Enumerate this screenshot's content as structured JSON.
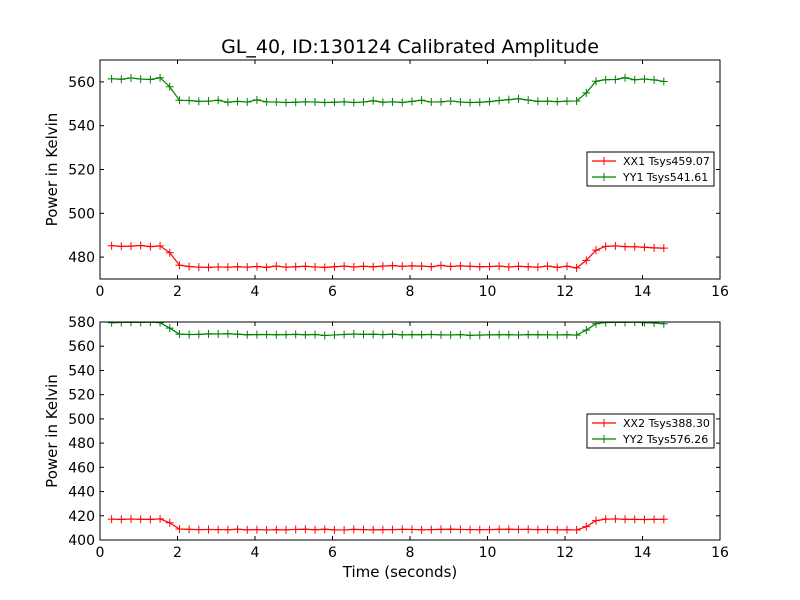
{
  "title": "GL_40, ID:130124 Calibrated Amplitude",
  "chart_data": [
    {
      "type": "line",
      "xlabel": "",
      "ylabel": "Power in Kelvin",
      "xlim": [
        0,
        16
      ],
      "ylim": [
        470,
        570
      ],
      "xticks": [
        0,
        2,
        4,
        6,
        8,
        10,
        12,
        14,
        16
      ],
      "yticks": [
        480,
        500,
        520,
        540,
        560
      ],
      "grid": false,
      "legend_placement": "center-right",
      "x": [
        0.3,
        0.55,
        0.8,
        1.05,
        1.3,
        1.55,
        1.8,
        2.05,
        2.3,
        2.55,
        2.8,
        3.05,
        3.3,
        3.55,
        3.8,
        4.05,
        4.3,
        4.55,
        4.8,
        5.05,
        5.3,
        5.55,
        5.8,
        6.05,
        6.3,
        6.55,
        6.8,
        7.05,
        7.3,
        7.55,
        7.8,
        8.05,
        8.3,
        8.55,
        8.8,
        9.05,
        9.3,
        9.55,
        9.8,
        10.05,
        10.3,
        10.55,
        10.8,
        11.05,
        11.3,
        11.55,
        11.8,
        12.05,
        12.3,
        12.55,
        12.8,
        13.05,
        13.3,
        13.55,
        13.8,
        14.05,
        14.3,
        14.55
      ],
      "series": [
        {
          "name": "XX1 Tsys459.07",
          "color": "#ff0000",
          "values": [
            485.2,
            484.9,
            485.0,
            485.3,
            484.8,
            485.1,
            482.0,
            476.3,
            475.7,
            475.4,
            475.3,
            475.5,
            475.4,
            475.6,
            475.4,
            475.7,
            475.3,
            475.9,
            475.4,
            475.6,
            475.8,
            475.5,
            475.3,
            475.6,
            475.9,
            475.5,
            475.8,
            475.6,
            475.9,
            476.1,
            475.8,
            476.0,
            475.9,
            475.6,
            476.2,
            475.7,
            476.0,
            475.8,
            475.6,
            475.7,
            475.9,
            475.5,
            475.8,
            475.6,
            475.4,
            475.9,
            475.3,
            475.8,
            475.1,
            478.5,
            483.2,
            484.9,
            485.1,
            484.8,
            484.7,
            484.5,
            484.2,
            484.1
          ]
        },
        {
          "name": "YY1 Tsys541.61",
          "color": "#008000",
          "values": [
            561.4,
            561.2,
            561.8,
            561.3,
            561.1,
            561.9,
            557.8,
            551.6,
            551.5,
            551.1,
            551.2,
            551.6,
            550.7,
            551.1,
            550.8,
            551.8,
            550.9,
            550.8,
            550.6,
            550.7,
            550.9,
            550.8,
            550.6,
            550.7,
            550.9,
            550.6,
            550.8,
            551.4,
            550.7,
            550.9,
            550.6,
            551.1,
            551.6,
            550.8,
            550.9,
            551.3,
            550.8,
            550.6,
            550.7,
            551.0,
            551.5,
            551.9,
            552.3,
            551.7,
            551.1,
            551.2,
            551.0,
            551.2,
            551.3,
            555.0,
            560.3,
            561.0,
            561.1,
            561.9,
            561.0,
            561.3,
            560.9,
            560.2
          ]
        }
      ]
    },
    {
      "type": "line",
      "xlabel": "Time (seconds)",
      "ylabel": "Power in Kelvin",
      "xlim": [
        0,
        16
      ],
      "ylim": [
        400,
        580
      ],
      "xticks": [
        0,
        2,
        4,
        6,
        8,
        10,
        12,
        14,
        16
      ],
      "yticks": [
        400,
        420,
        440,
        460,
        480,
        500,
        520,
        540,
        560,
        580
      ],
      "grid": false,
      "legend_placement": "center-right",
      "x": [
        0.3,
        0.55,
        0.8,
        1.05,
        1.3,
        1.55,
        1.8,
        2.05,
        2.3,
        2.55,
        2.8,
        3.05,
        3.3,
        3.55,
        3.8,
        4.05,
        4.3,
        4.55,
        4.8,
        5.05,
        5.3,
        5.55,
        5.8,
        6.05,
        6.3,
        6.55,
        6.8,
        7.05,
        7.3,
        7.55,
        7.8,
        8.05,
        8.3,
        8.55,
        8.8,
        9.05,
        9.3,
        9.55,
        9.8,
        10.05,
        10.3,
        10.55,
        10.8,
        11.05,
        11.3,
        11.55,
        11.8,
        12.05,
        12.3,
        12.55,
        12.8,
        13.05,
        13.3,
        13.55,
        13.8,
        14.05,
        14.3,
        14.55
      ],
      "series": [
        {
          "name": "XX2 Tsys388.30",
          "color": "#ff0000",
          "values": [
            417.2,
            417.0,
            417.3,
            417.1,
            417.0,
            417.4,
            414.2,
            409.1,
            408.8,
            408.6,
            408.7,
            408.6,
            408.5,
            408.9,
            408.4,
            408.6,
            408.3,
            408.5,
            408.4,
            408.7,
            408.9,
            408.5,
            408.9,
            408.4,
            408.3,
            408.8,
            408.6,
            408.4,
            408.5,
            408.6,
            408.8,
            408.7,
            408.4,
            408.6,
            408.8,
            408.9,
            408.7,
            408.6,
            408.5,
            408.6,
            408.8,
            408.9,
            408.7,
            408.8,
            408.6,
            408.7,
            408.4,
            408.5,
            408.3,
            411.0,
            416.0,
            417.2,
            417.4,
            417.1,
            417.0,
            416.9,
            417.0,
            417.1
          ]
        },
        {
          "name": "YY2 Tsys576.26",
          "color": "#008000",
          "values": [
            579.4,
            579.6,
            579.8,
            579.7,
            579.9,
            579.5,
            574.9,
            570.0,
            569.7,
            569.8,
            570.2,
            570.1,
            570.3,
            569.9,
            569.5,
            569.6,
            569.7,
            569.5,
            569.6,
            569.8,
            569.5,
            569.7,
            568.9,
            569.3,
            569.7,
            570.1,
            569.8,
            569.9,
            569.6,
            570.0,
            569.4,
            569.6,
            569.5,
            569.7,
            569.4,
            569.3,
            569.6,
            569.0,
            569.2,
            569.4,
            569.5,
            569.5,
            569.3,
            569.6,
            569.5,
            569.4,
            569.3,
            569.5,
            569.2,
            573.3,
            578.6,
            579.6,
            579.8,
            579.7,
            579.9,
            579.5,
            579.2,
            578.6
          ]
        }
      ]
    }
  ]
}
